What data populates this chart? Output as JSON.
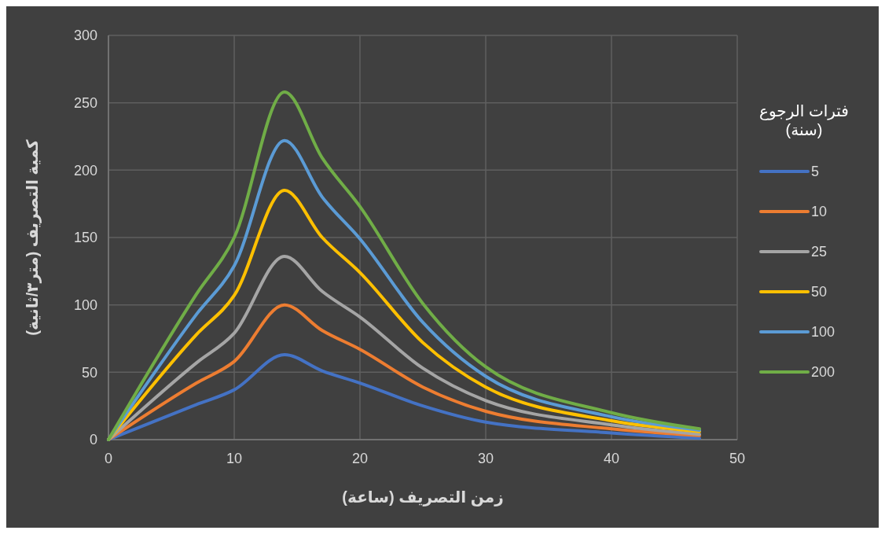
{
  "chart_data": {
    "type": "line",
    "xlabel": "زمن التصريف (ساعة)",
    "ylabel": "كمية التصريف (متر٣/ثانية)",
    "legend_title": "فترات الرجوع (سنة)",
    "x": [
      0,
      7,
      10,
      14,
      17,
      20,
      25,
      30,
      40,
      47
    ],
    "series": [
      {
        "name": "5",
        "color": "#4472c4",
        "values": [
          0,
          26,
          37,
          63,
          51,
          42,
          25,
          13,
          5,
          1
        ]
      },
      {
        "name": "10",
        "color": "#ed7d31",
        "values": [
          0,
          42,
          58,
          100,
          81,
          67,
          39,
          21,
          8,
          3
        ]
      },
      {
        "name": "25",
        "color": "#a5a5a5",
        "values": [
          0,
          57,
          79,
          136,
          110,
          91,
          53,
          29,
          11,
          4
        ]
      },
      {
        "name": "50",
        "color": "#ffc000",
        "values": [
          0,
          78,
          107,
          185,
          150,
          124,
          72,
          39,
          14,
          6
        ]
      },
      {
        "name": "100",
        "color": "#5b9bd5",
        "values": [
          0,
          93,
          129,
          222,
          180,
          149,
          87,
          47,
          17,
          7
        ]
      },
      {
        "name": "200",
        "color": "#70ad47",
        "values": [
          0,
          108,
          150,
          258,
          209,
          173,
          101,
          54,
          20,
          8
        ]
      }
    ],
    "xlim": [
      0,
      50
    ],
    "xticks": [
      0,
      10,
      20,
      30,
      40,
      50
    ],
    "ylim": [
      0,
      300
    ],
    "yticks": [
      0,
      50,
      100,
      150,
      200,
      250,
      300
    ],
    "grid": true,
    "legend": "right",
    "marker": "none",
    "line_style": "solid"
  }
}
